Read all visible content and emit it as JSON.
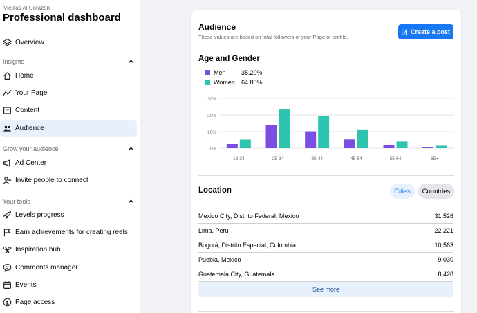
{
  "sidebar": {
    "page_name": "Viejitas Al Corazón",
    "title": "Professional dashboard",
    "overview": "Overview",
    "insights_header": "Insights",
    "insights_items": [
      "Home",
      "Your Page",
      "Content",
      "Audience"
    ],
    "grow_header": "Grow your audience",
    "grow_items": [
      "Ad Center",
      "Invite people to connect"
    ],
    "tools_header": "Your tools",
    "tools_items": [
      "Levels progress",
      "Earn achievements for creating reels",
      "Inspiration hub",
      "Comments manager",
      "Events",
      "Page access"
    ],
    "active_item": "Audience"
  },
  "audience": {
    "title": "Audience",
    "subtitle": "These values are based on total followers of your Page or profile.",
    "create_post": "Create a post"
  },
  "age_gender": {
    "title": "Age and Gender",
    "legend": [
      {
        "name": "Men",
        "value": "35.20%",
        "color": "#7b4ee3"
      },
      {
        "name": "Women",
        "value": "64.80%",
        "color": "#2ec4b0"
      }
    ]
  },
  "chart_data": {
    "type": "bar",
    "categories": [
      "18-24",
      "25-34",
      "35-44",
      "45-54",
      "55-64",
      "65+"
    ],
    "series": [
      {
        "name": "Men",
        "values": [
          2.5,
          13.8,
          10.2,
          5.3,
          2.0,
          0.8
        ],
        "color": "#7b4ee3"
      },
      {
        "name": "Women",
        "values": [
          5.2,
          23.3,
          19.3,
          10.9,
          4.0,
          1.5
        ],
        "color": "#2ec4b0"
      }
    ],
    "yticks": [
      "30%",
      "20%",
      "10%",
      "0%"
    ],
    "ylim": [
      0,
      30
    ],
    "grid": true
  },
  "location": {
    "title": "Location",
    "tab_cities": "Cities",
    "tab_countries": "Countries",
    "rows": [
      {
        "name": "Mexico City, Distrito Federal, Mexico",
        "value": "31,526"
      },
      {
        "name": "Lima, Peru",
        "value": "22,221"
      },
      {
        "name": "Bogotá, Distrito Especial, Colombia",
        "value": "10,563"
      },
      {
        "name": "Puebla, Mexico",
        "value": "9,030"
      },
      {
        "name": "Guatemala City, Guatemala",
        "value": "8,428"
      }
    ],
    "see_more": "See more"
  }
}
